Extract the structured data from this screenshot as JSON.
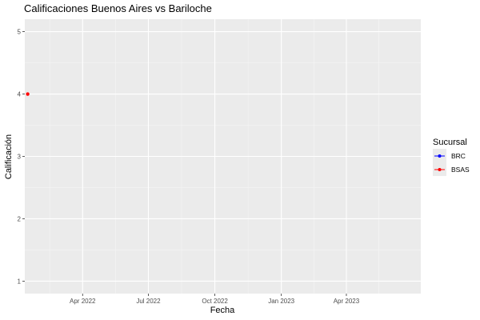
{
  "chart_data": {
    "type": "line",
    "title": "Calificaciones Buenos Aires vs Bariloche",
    "xlabel": "Fecha",
    "ylabel": "Calificación",
    "x_type": "date",
    "xlim": [
      "2022-01-11",
      "2023-07-13"
    ],
    "ylim": [
      0.8,
      5.2
    ],
    "x_ticks": [
      {
        "date": "2022-04-01",
        "label": "Apr 2022"
      },
      {
        "date": "2022-07-01",
        "label": "Jul 2022"
      },
      {
        "date": "2022-10-01",
        "label": "Oct 2022"
      },
      {
        "date": "2023-01-01",
        "label": "Jan 2023"
      },
      {
        "date": "2023-04-01",
        "label": "Apr 2023"
      }
    ],
    "y_ticks": [
      1,
      2,
      3,
      4,
      5
    ],
    "grid": true,
    "legend": {
      "title": "Sucursal",
      "position": "right"
    },
    "series": [
      {
        "name": "BRC",
        "color": "#0000ff",
        "points": []
      },
      {
        "name": "BSAS",
        "color": "#ff0000",
        "points": [
          {
            "x": "2022-01-15",
            "y": 4
          }
        ]
      }
    ]
  }
}
